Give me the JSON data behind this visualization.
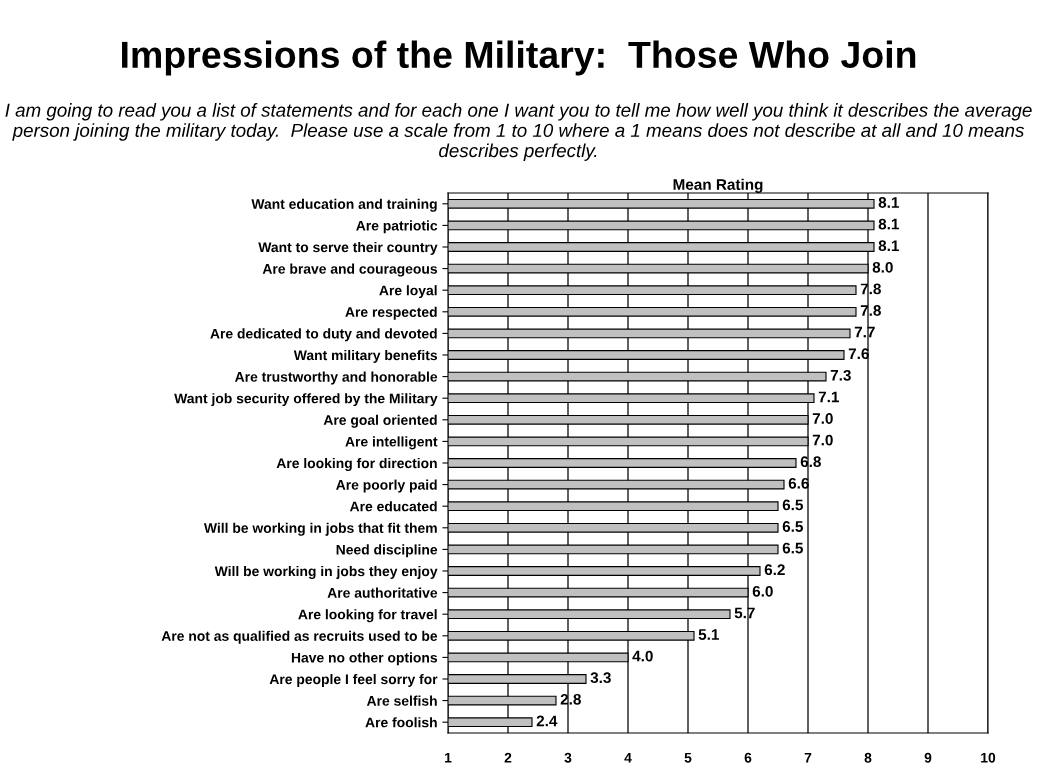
{
  "chart_data": {
    "type": "bar",
    "orientation": "horizontal",
    "title": "Impressions of the Military:  Those Who Join",
    "subtitle": "I am going to read you a list of statements and for each one I want you to tell me how well you think it describes the average person joining the military today.  Please use a scale from 1 to 10 where a 1 means does not describe at all and 10 means describes perfectly.",
    "xlabel": "Mean Rating",
    "categories": [
      "Want education and training",
      "Are patriotic",
      "Want to serve their country",
      "Are brave and courageous",
      "Are loyal",
      "Are respected",
      "Are dedicated to duty and devoted",
      "Want military benefits",
      "Are trustworthy and honorable",
      "Want job security offered by the Military",
      "Are goal oriented",
      "Are intelligent",
      "Are looking for direction",
      "Are poorly paid",
      "Are educated",
      "Will be working in jobs that fit them",
      "Need discipline",
      "Will be working in jobs they enjoy",
      "Are authoritative",
      "Are looking for travel",
      "Are not as qualified as recruits used to be",
      "Have no other options",
      "Are people I feel sorry for",
      "Are selfish",
      "Are foolish"
    ],
    "values": [
      8.1,
      8.1,
      8.1,
      8.0,
      7.8,
      7.8,
      7.7,
      7.6,
      7.3,
      7.1,
      7.0,
      7.0,
      6.8,
      6.6,
      6.5,
      6.5,
      6.5,
      6.2,
      6.0,
      5.7,
      5.1,
      4.0,
      3.3,
      2.8,
      2.4
    ],
    "value_labels": [
      "8.1",
      "8.1",
      "8.1",
      "8.0",
      "7.8",
      "7.8",
      "7.7",
      "7.6",
      "7.3",
      "7.1",
      "7.0",
      "7.0",
      "6.8",
      "6.6",
      "6.5",
      "6.5",
      "6.5",
      "6.2",
      "6.0",
      "5.7",
      "5.1",
      "4.0",
      "3.3",
      "2.8",
      "2.4"
    ],
    "color": "#c0c0c0",
    "xlim": [
      1,
      10
    ],
    "xticks": [
      1,
      2,
      3,
      4,
      5,
      6,
      7,
      8,
      9,
      10
    ],
    "grid": "x"
  }
}
